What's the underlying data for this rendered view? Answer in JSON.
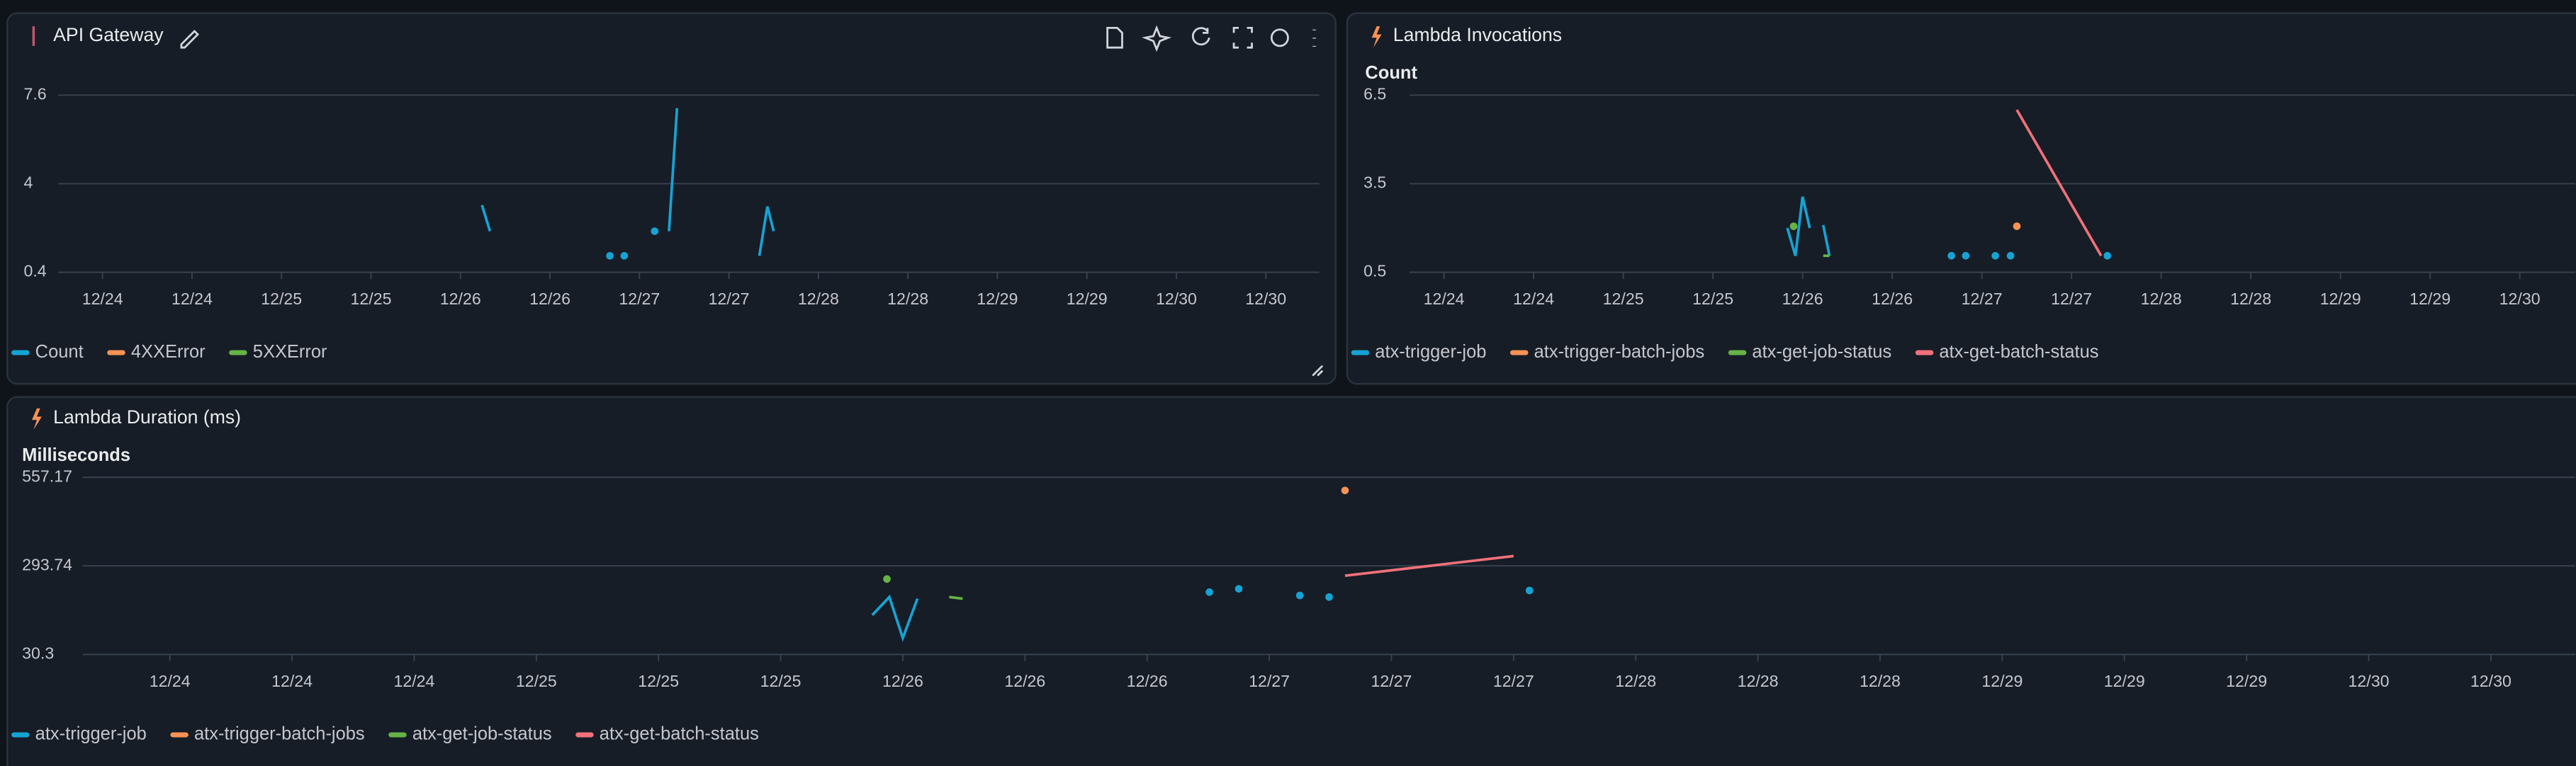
{
  "chart_data": [
    {
      "type": "line",
      "title": "API Gateway",
      "xticks": [
        {
          "value": 0,
          "label": "12/24"
        },
        {
          "value": 1,
          "label": "12/24"
        },
        {
          "value": 2,
          "label": "12/25"
        },
        {
          "value": 3,
          "label": "12/25"
        },
        {
          "value": 4,
          "label": "12/26"
        },
        {
          "value": 5,
          "label": "12/26"
        },
        {
          "value": 6,
          "label": "12/27"
        },
        {
          "value": 7,
          "label": "12/27"
        },
        {
          "value": 8,
          "label": "12/28"
        },
        {
          "value": 9,
          "label": "12/28"
        },
        {
          "value": 10,
          "label": "12/29"
        },
        {
          "value": 11,
          "label": "12/29"
        },
        {
          "value": 12,
          "label": "12/30"
        },
        {
          "value": 13,
          "label": "12/30"
        }
      ],
      "ylim": [
        0.4,
        7.6
      ],
      "yticks": [
        0.4,
        4,
        7.6
      ],
      "grid": true,
      "series": [
        {
          "name": "Count",
          "color": "#16a3d4",
          "x": [
            4.24,
            4.33,
            null,
            5.67,
            null,
            5.83,
            null,
            6.17,
            null,
            6.33,
            6.42,
            null,
            7.34,
            7.43,
            7.5
          ],
          "values": [
            3.13,
            2.07,
            null,
            1.07,
            null,
            1.07,
            null,
            2.07,
            null,
            2.07,
            7.07,
            null,
            1.07,
            3.07,
            2.07
          ]
        },
        {
          "name": "4XXError",
          "color": "#f89256",
          "x": [],
          "values": []
        },
        {
          "name": "5XXError",
          "color": "#67b346",
          "x": [],
          "values": []
        }
      ]
    },
    {
      "type": "line",
      "title": "Lambda Invocations",
      "ylabel": "Count",
      "xticks": [
        {
          "value": 0,
          "label": "12/24"
        },
        {
          "value": 1,
          "label": "12/24"
        },
        {
          "value": 2,
          "label": "12/25"
        },
        {
          "value": 3,
          "label": "12/25"
        },
        {
          "value": 4,
          "label": "12/26"
        },
        {
          "value": 5,
          "label": "12/26"
        },
        {
          "value": 6,
          "label": "12/27"
        },
        {
          "value": 7,
          "label": "12/27"
        },
        {
          "value": 8,
          "label": "12/28"
        },
        {
          "value": 9,
          "label": "12/28"
        },
        {
          "value": 10,
          "label": "12/29"
        },
        {
          "value": 11,
          "label": "12/29"
        },
        {
          "value": 12,
          "label": "12/30"
        }
      ],
      "ylim": [
        0.5,
        6.5
      ],
      "yticks": [
        0.5,
        3.5,
        6.5
      ],
      "grid": true,
      "series": [
        {
          "name": "atx-trigger-job",
          "color": "#16a3d4",
          "x": [
            3.83,
            3.92,
            4.0,
            4.08,
            null,
            4.23,
            4.3,
            null,
            5.66,
            null,
            5.82,
            null,
            6.15,
            null,
            6.32,
            null,
            7.4
          ],
          "values": [
            2.0,
            1.06,
            3.06,
            2.0,
            null,
            2.1,
            1.06,
            null,
            1.06,
            null,
            1.06,
            null,
            1.06,
            null,
            1.06,
            null,
            1.06
          ]
        },
        {
          "name": "atx-trigger-batch-jobs",
          "color": "#f89256",
          "x": [
            6.39
          ],
          "values": [
            2.06
          ]
        },
        {
          "name": "atx-get-job-status",
          "color": "#67b346",
          "x": [
            3.9,
            null,
            4.23,
            4.3
          ],
          "values": [
            2.06,
            null,
            1.06,
            1.06
          ]
        },
        {
          "name": "atx-get-batch-status",
          "color": "#f2717a",
          "x": [
            6.39,
            7.33
          ],
          "values": [
            6.0,
            1.06
          ]
        }
      ]
    },
    {
      "type": "line",
      "title": "Lambda Duration (ms)",
      "ylabel": "Milliseconds",
      "xticks": [
        {
          "value": 0,
          "label": "12/24"
        },
        {
          "value": 1,
          "label": "12/24"
        },
        {
          "value": 2,
          "label": "12/24"
        },
        {
          "value": 3,
          "label": "12/25"
        },
        {
          "value": 4,
          "label": "12/25"
        },
        {
          "value": 5,
          "label": "12/25"
        },
        {
          "value": 6,
          "label": "12/26"
        },
        {
          "value": 7,
          "label": "12/26"
        },
        {
          "value": 8,
          "label": "12/26"
        },
        {
          "value": 9,
          "label": "12/27"
        },
        {
          "value": 10,
          "label": "12/27"
        },
        {
          "value": 11,
          "label": "12/27"
        },
        {
          "value": 12,
          "label": "12/28"
        },
        {
          "value": 13,
          "label": "12/28"
        },
        {
          "value": 14,
          "label": "12/28"
        },
        {
          "value": 15,
          "label": "12/29"
        },
        {
          "value": 16,
          "label": "12/29"
        },
        {
          "value": 17,
          "label": "12/29"
        },
        {
          "value": 18,
          "label": "12/30"
        },
        {
          "value": 19,
          "label": "12/30"
        }
      ],
      "ylim": [
        30.3,
        557.17
      ],
      "yticks": [
        30.3,
        293.74,
        557.17
      ],
      "grid": true,
      "series": [
        {
          "name": "atx-trigger-job",
          "color": "#16a3d4",
          "x": [
            5.75,
            5.89,
            6.0,
            6.12,
            null,
            8.51,
            null,
            8.75,
            null,
            9.25,
            null,
            9.49,
            null,
            11.13
          ],
          "values": [
            147.4,
            201.1,
            79.1,
            196.2,
            null,
            215.7,
            null,
            225.5,
            null,
            205.9,
            null,
            201.1,
            null,
            220.6
          ]
        },
        {
          "name": "atx-trigger-batch-jobs",
          "color": "#f89256",
          "x": [
            9.62
          ],
          "values": [
            518.1
          ]
        },
        {
          "name": "atx-get-job-status",
          "color": "#67b346",
          "x": [
            5.87,
            null,
            6.38,
            6.49
          ],
          "values": [
            254.7,
            null,
            201.1,
            196.2
          ]
        },
        {
          "name": "atx-get-batch-status",
          "color": "#f2717a",
          "x": [
            9.62,
            11.0
          ],
          "values": [
            264.5,
            323.0
          ]
        }
      ]
    }
  ]
}
